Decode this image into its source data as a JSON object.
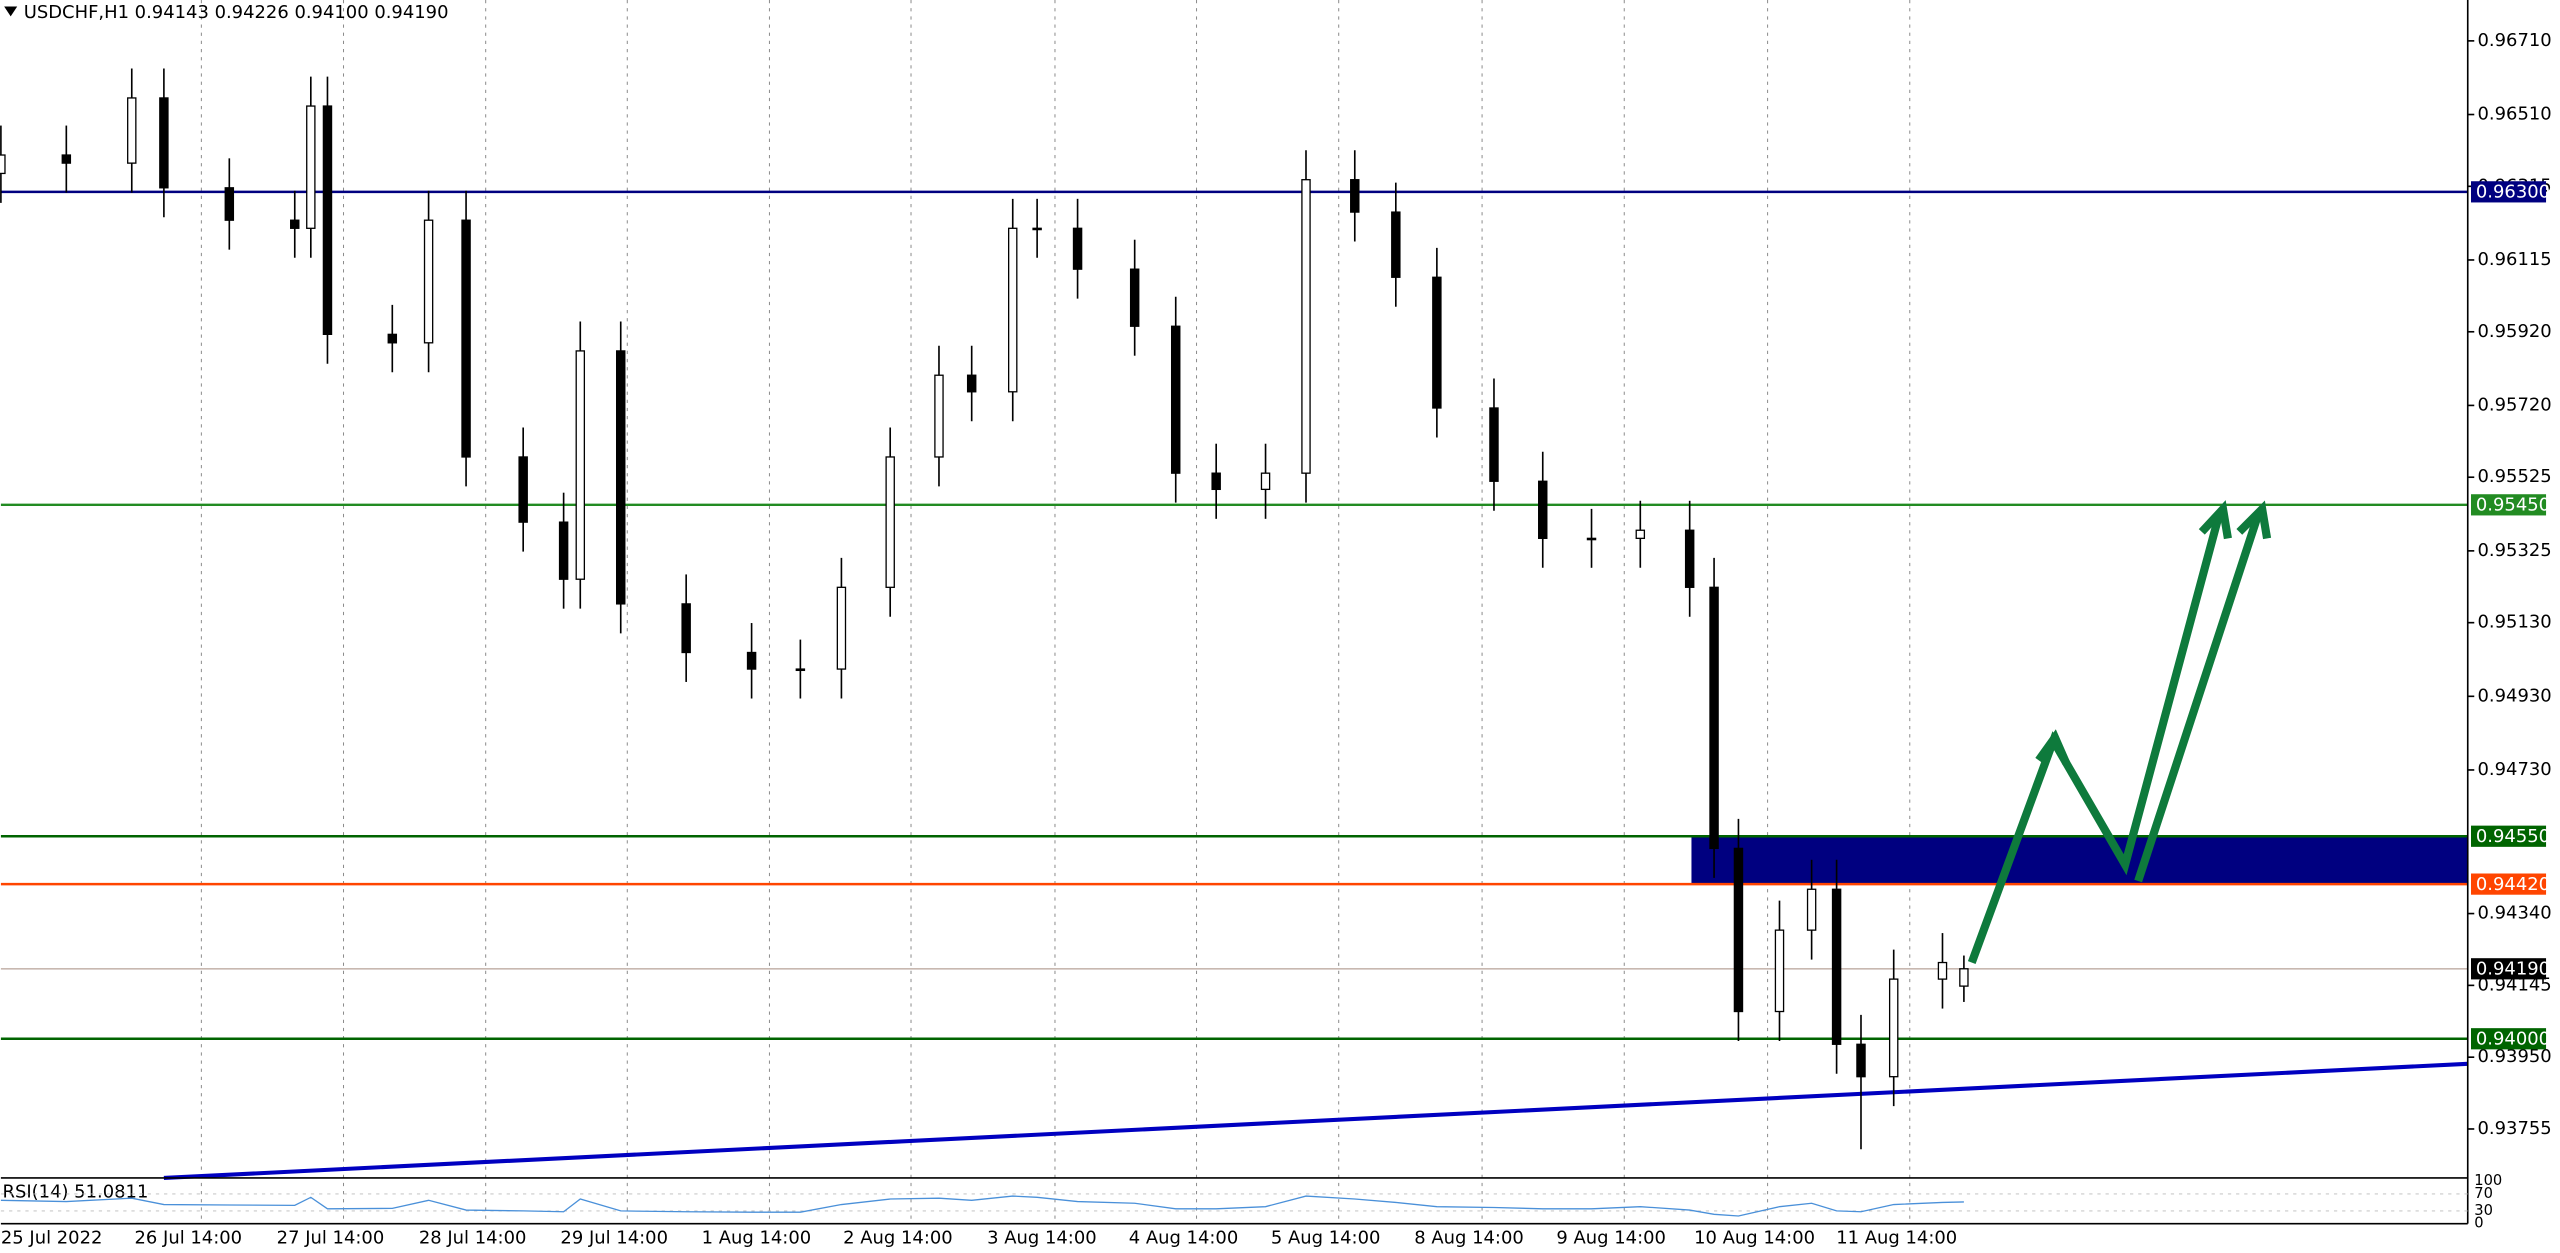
{
  "chart_data": {
    "type": "candlestick",
    "title": "USDCHF,H1  0.94143 0.94226 0.94100 0.94190",
    "x": [
      0,
      11,
      22,
      27.4,
      38.4,
      49.4,
      52.1,
      54.9,
      65.8,
      71.9,
      78.2,
      87.8,
      94.6,
      97.4,
      104.2,
      115.2,
      126.2,
      134.4,
      141.3,
      149.5,
      157.7,
      163.2,
      170.1,
      174.2,
      181,
      190.6,
      197.5,
      204.3,
      212.6,
      219.4,
      227.6,
      234.5,
      241.4,
      251,
      259.2,
      267.4,
      275.6,
      283.9,
      288,
      292.1,
      299,
      304.4,
      308.6,
      312.7,
      318.2,
      326.4,
      330
    ],
    "open": [
      0.9635,
      0.964,
      0.96378,
      0.96555,
      0.96311,
      0.96223,
      0.96201,
      0.96533,
      0.95913,
      0.9589,
      0.96223,
      0.9558,
      0.95403,
      0.95248,
      0.95868,
      0.95181,
      0.95049,
      0.95004,
      0.95004,
      0.95226,
      0.9558,
      0.95802,
      0.95757,
      0.96201,
      0.96201,
      0.9609,
      0.95935,
      0.95536,
      0.95492,
      0.95536,
      0.96333,
      0.96245,
      0.96068,
      0.95713,
      0.95514,
      0.95359,
      0.95359,
      0.95381,
      0.95226,
      0.94517,
      0.94074,
      0.94295,
      0.94406,
      0.93985,
      0.93897,
      0.94162,
      0.94143
    ],
    "high": [
      0.9648,
      0.9648,
      0.96635,
      0.96635,
      0.96391,
      0.96303,
      0.96613,
      0.96613,
      0.95993,
      0.96303,
      0.96303,
      0.9566,
      0.95483,
      0.95948,
      0.95948,
      0.95261,
      0.95129,
      0.95084,
      0.95306,
      0.9566,
      0.95882,
      0.95882,
      0.96281,
      0.96281,
      0.96281,
      0.9617,
      0.96015,
      0.95616,
      0.95616,
      0.96413,
      0.96413,
      0.96325,
      0.96148,
      0.95793,
      0.95594,
      0.95439,
      0.95461,
      0.95461,
      0.95306,
      0.94597,
      0.94375,
      0.94486,
      0.94486,
      0.94065,
      0.94242,
      0.94287,
      0.94226
    ],
    "low": [
      0.9627,
      0.96298,
      0.96298,
      0.96231,
      0.96143,
      0.96121,
      0.96121,
      0.95833,
      0.9581,
      0.9581,
      0.955,
      0.95323,
      0.95168,
      0.95168,
      0.95101,
      0.94969,
      0.94924,
      0.94924,
      0.94924,
      0.95146,
      0.955,
      0.95677,
      0.95677,
      0.96121,
      0.9601,
      0.95855,
      0.95456,
      0.95412,
      0.95412,
      0.95456,
      0.96165,
      0.95988,
      0.95633,
      0.95434,
      0.95279,
      0.95279,
      0.95279,
      0.95146,
      0.94437,
      0.93994,
      0.93994,
      0.94215,
      0.93905,
      0.937,
      0.93817,
      0.94082,
      0.941
    ],
    "close": [
      0.964,
      0.96378,
      0.96555,
      0.96311,
      0.96223,
      0.96201,
      0.96533,
      0.95913,
      0.9589,
      0.96223,
      0.9558,
      0.95403,
      0.95248,
      0.95868,
      0.95181,
      0.95049,
      0.95004,
      0.95004,
      0.95226,
      0.9558,
      0.95802,
      0.95757,
      0.96201,
      0.96201,
      0.9609,
      0.95935,
      0.95536,
      0.95492,
      0.95536,
      0.96333,
      0.96245,
      0.96068,
      0.95713,
      0.95514,
      0.95359,
      0.95359,
      0.95381,
      0.95226,
      0.94517,
      0.94074,
      0.94295,
      0.94406,
      0.93985,
      0.93897,
      0.94162,
      0.94207,
      0.9419
    ],
    "up_color": "#ffffff",
    "down_color": "#000000",
    "xlim": [
      0,
      414.7
    ],
    "ylim": [
      0.93622,
      0.96821
    ],
    "xticks": [
      {
        "value": 0,
        "label": "25 Jul 2022"
      },
      {
        "value": 33.7,
        "label": "26 Jul 14:00"
      },
      {
        "value": 57.6,
        "label": "27 Jul 14:00"
      },
      {
        "value": 81.5,
        "label": "28 Jul 14:00"
      },
      {
        "value": 105.3,
        "label": "29 Jul 14:00"
      },
      {
        "value": 129.2,
        "label": "1 Aug 14:00"
      },
      {
        "value": 153,
        "label": "2 Aug 14:00"
      },
      {
        "value": 177.2,
        "label": "3 Aug 14:00"
      },
      {
        "value": 201,
        "label": "4 Aug 14:00"
      },
      {
        "value": 224.9,
        "label": "5 Aug 14:00"
      },
      {
        "value": 249,
        "label": "8 Aug 14:00"
      },
      {
        "value": 272.9,
        "label": "9 Aug 14:00"
      },
      {
        "value": 297,
        "label": "10 Aug 14:00"
      },
      {
        "value": 320.9,
        "label": "11 Aug 14:00"
      }
    ],
    "yticks": [
      {
        "value": 0.9671,
        "label": "0.96710"
      },
      {
        "value": 0.9651,
        "label": "0.96510"
      },
      {
        "value": 0.96315,
        "label": "0.96315"
      },
      {
        "value": 0.96115,
        "label": "0.96115"
      },
      {
        "value": 0.9592,
        "label": "0.95920"
      },
      {
        "value": 0.9572,
        "label": "0.95720"
      },
      {
        "value": 0.95525,
        "label": "0.95525"
      },
      {
        "value": 0.95325,
        "label": "0.95325"
      },
      {
        "value": 0.9513,
        "label": "0.95130"
      },
      {
        "value": 0.9493,
        "label": "0.94930"
      },
      {
        "value": 0.9473,
        "label": "0.94730"
      },
      {
        "value": 0.9434,
        "label": "0.94340"
      },
      {
        "value": 0.94145,
        "label": "0.94145"
      },
      {
        "value": 0.9395,
        "label": "0.93950"
      },
      {
        "value": 0.93755,
        "label": "0.93755"
      }
    ],
    "grid": true,
    "levels": [
      {
        "value": 0.963,
        "label": "0.96300",
        "color": "#000080"
      },
      {
        "value": 0.9545,
        "label": "0.95450",
        "color": "#228b22"
      },
      {
        "value": 0.9455,
        "label": "0.94550",
        "color": "#006400"
      },
      {
        "value": 0.9442,
        "label": "0.94420",
        "color": "#ff4500"
      },
      {
        "value": 0.9419,
        "label": "0.94190",
        "color": "#000000"
      },
      {
        "value": 0.94,
        "label": "0.94000",
        "color": "#006400"
      }
    ],
    "zone": {
      "x": 284.2,
      "low": 0.9442,
      "high": 0.9455,
      "color": "#000080"
    },
    "trendline": {
      "x": [
        27.4,
        414.7
      ],
      "y": [
        0.93622,
        0.93932
      ],
      "color": "#0000c0"
    },
    "rsi": {
      "label": "RSI(14) 51.0811",
      "values": [
        55,
        52,
        60,
        45,
        44,
        43,
        62,
        35,
        36,
        55,
        32,
        30,
        28,
        58,
        30,
        28,
        27,
        27,
        45,
        58,
        60,
        55,
        65,
        62,
        52,
        48,
        35,
        35,
        40,
        65,
        58,
        50,
        40,
        38,
        35,
        35,
        40,
        32,
        22,
        18,
        40,
        48,
        30,
        28,
        45,
        50,
        51.0811
      ],
      "ylim": [
        0,
        100
      ],
      "yticks": [
        100,
        70,
        30,
        0
      ],
      "color": "#4a90d9"
    }
  }
}
